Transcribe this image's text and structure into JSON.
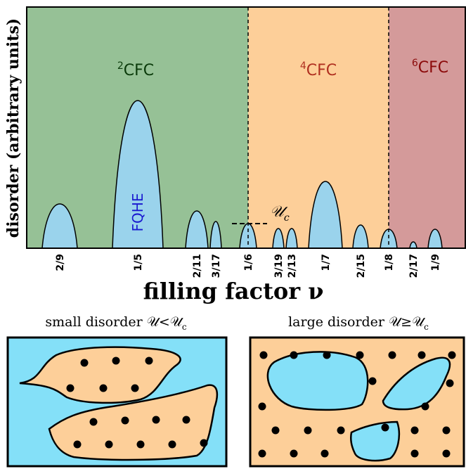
{
  "plot": {
    "y_label": "disorder (arbitrary units)",
    "x_label": "filling factor ν",
    "regions": [
      {
        "sup": "2",
        "label": "CFC"
      },
      {
        "sup": "4",
        "label": "CFC"
      },
      {
        "sup": "6",
        "label": "CFC"
      }
    ],
    "fqhe_label": "FQHE",
    "threshold_label": "𝒰",
    "threshold_sub": "c",
    "ticks": [
      "2/9",
      "1/5",
      "2/11",
      "3/17",
      "1/6",
      "3/19",
      "2/13",
      "1/7",
      "2/15",
      "1/8",
      "2/17",
      "1/9"
    ]
  },
  "panels": [
    {
      "title": "small disorder 𝒰<𝒰",
      "sub": "c"
    },
    {
      "title": "large disorder 𝒰≥𝒰",
      "sub": "c"
    }
  ]
}
